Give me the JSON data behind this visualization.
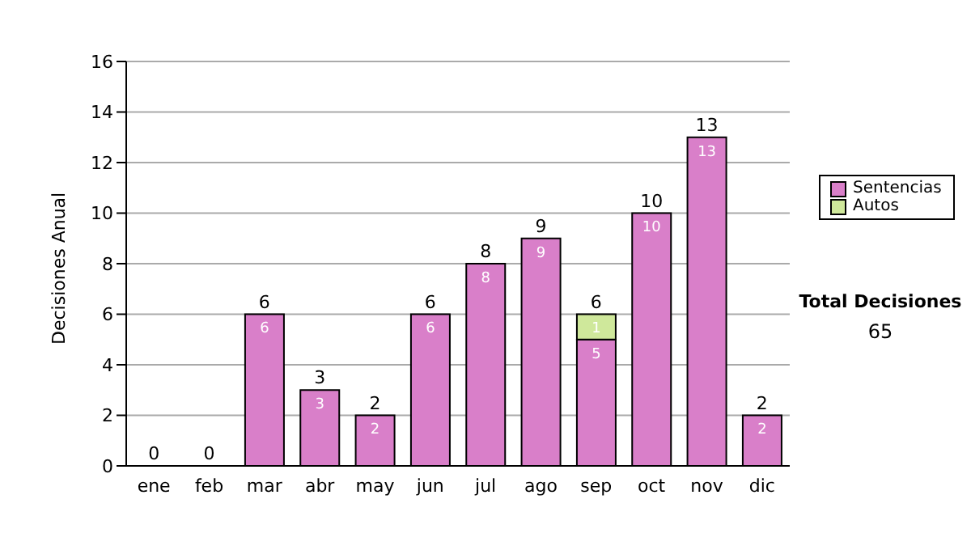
{
  "chart_data": {
    "type": "bar",
    "ylabel": "Decisiones Anual",
    "categories": [
      "ene",
      "feb",
      "mar",
      "abr",
      "may",
      "jun",
      "jul",
      "ago",
      "sep",
      "oct",
      "nov",
      "dic"
    ],
    "series": [
      {
        "name": "Sentencias",
        "color": "#d97fc9",
        "values": [
          0,
          0,
          6,
          3,
          2,
          6,
          8,
          9,
          5,
          10,
          13,
          2
        ],
        "value_labels": [
          null,
          null,
          "6",
          "3",
          "2",
          "6",
          "8",
          "9",
          "5",
          "10",
          "13",
          "2"
        ]
      },
      {
        "name": "Autos",
        "color": "#cfe89b",
        "values": [
          0,
          0,
          0,
          0,
          0,
          0,
          0,
          0,
          1,
          0,
          0,
          0
        ],
        "value_labels": [
          null,
          null,
          null,
          null,
          null,
          null,
          null,
          null,
          "1",
          null,
          null,
          null
        ]
      }
    ],
    "stacked": true,
    "totals": [
      "0",
      "0",
      "6",
      "3",
      "2",
      "6",
      "8",
      "9",
      "6",
      "10",
      "13",
      "2"
    ],
    "ylim": [
      0,
      16
    ],
    "yticks": [
      0,
      2,
      4,
      6,
      8,
      10,
      12,
      14,
      16
    ],
    "grid": "y",
    "legend": "right",
    "annotations": [
      "Total Decisiones",
      "65"
    ]
  }
}
